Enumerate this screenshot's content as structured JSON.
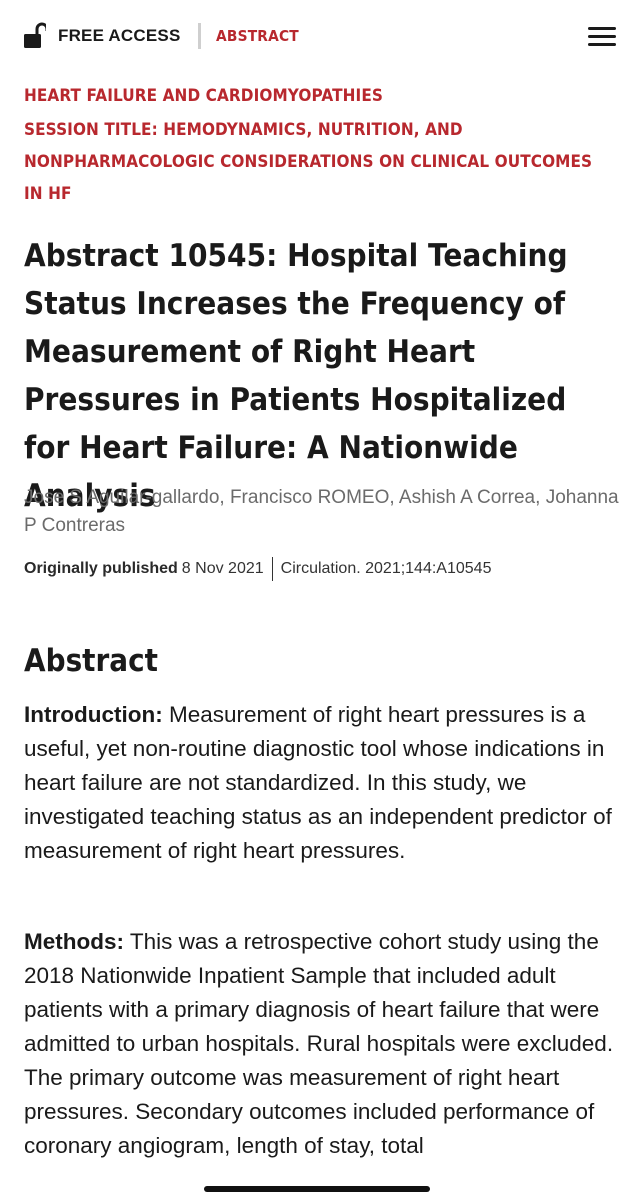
{
  "header": {
    "access_label": "FREE ACCESS",
    "type_label": "ABSTRACT"
  },
  "article": {
    "category": "HEART FAILURE AND CARDIOMYOPATHIES",
    "session": "SESSION TITLE: HEMODYNAMICS, NUTRITION, AND NONPHARMACOLOGIC CONSIDERATIONS ON CLINICAL OUTCOMES IN HF",
    "title": "Abstract 10545: Hospital Teaching Status Increases the Frequency of Measurement of Right Heart Pressures in Patients Hospitalized for Heart Failure: A Nationwide Analysis",
    "authors": [
      "Jose S Aguilar-gallardo",
      "Francisco ROMEO",
      "Ashish A Correa",
      "Johanna P Contreras"
    ],
    "published_label": "Originally published",
    "published_date": "8 Nov 2021",
    "citation": "Circulation. 2021;144:A10545"
  },
  "abstract": {
    "heading": "Abstract",
    "introduction_label": "Introduction:",
    "introduction_text": "Measurement of right heart pressures is a useful, yet non-routine diagnostic tool whose indications in heart failure are not standardized. In this study, we investigated teaching status as an independent predictor of measurement of right heart pressures.",
    "methods_label": "Methods:",
    "methods_text": "This was a retrospective cohort study using the 2018 Nationwide Inpatient Sample that included adult patients with a primary diagnosis of heart failure that were admitted to urban hospitals. Rural hospitals were excluded. The primary outcome was measurement of right heart pressures. Secondary outcomes included performance of coronary angiogram, length of stay, total"
  },
  "icons": {
    "access": "unlocked-padlock-icon",
    "menu": "hamburger-menu-icon"
  },
  "colors": {
    "accent": "#b8282e",
    "text": "#1a1a1a",
    "muted": "#6b6b6b"
  }
}
